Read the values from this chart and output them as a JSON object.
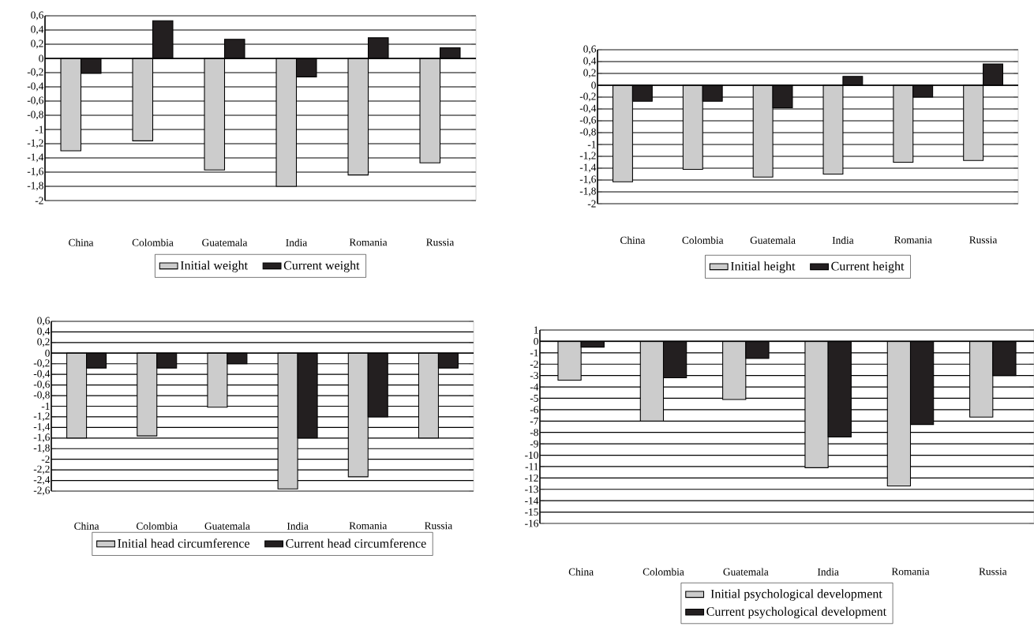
{
  "chart_data": [
    {
      "type": "bar",
      "categories": [
        "China",
        "Colombia",
        "Guatemala",
        "India",
        "Romania",
        "Russia"
      ],
      "series": [
        {
          "name": "Initial weight",
          "color": "#cccccc",
          "values": [
            -1.3,
            -1.16,
            -1.57,
            -1.8,
            -1.64,
            -1.47
          ]
        },
        {
          "name": "Current weight",
          "color": "#231f20",
          "values": [
            -0.21,
            0.53,
            0.27,
            -0.26,
            0.29,
            0.15
          ]
        }
      ],
      "ylim": [
        -2,
        0.6
      ],
      "yticks": [
        {
          "value": -2,
          "label": "-2"
        },
        {
          "value": -1.8,
          "label": "-1,8"
        },
        {
          "value": -1.6,
          "label": "-1,6"
        },
        {
          "value": -1.4,
          "label": "-1,4"
        },
        {
          "value": -1.2,
          "label": "-1,2"
        },
        {
          "value": -1,
          "label": "-1"
        },
        {
          "value": -0.8,
          "label": "-0,8"
        },
        {
          "value": -0.6,
          "label": "-0,6"
        },
        {
          "value": -0.4,
          "label": "-0,4"
        },
        {
          "value": -0.2,
          "label": "-0,2"
        },
        {
          "value": 0,
          "label": "0"
        },
        {
          "value": 0.2,
          "label": "0,2"
        },
        {
          "value": 0.4,
          "label": "0,4"
        },
        {
          "value": 0.6,
          "label": "0,6"
        }
      ],
      "grid": "y",
      "legend": "bottom"
    },
    {
      "type": "bar",
      "categories": [
        "China",
        "Colombia",
        "Guatemala",
        "India",
        "Romania",
        "Russia"
      ],
      "series": [
        {
          "name": "Initial height",
          "color": "#cccccc",
          "values": [
            -1.63,
            -1.42,
            -1.55,
            -1.5,
            -1.3,
            -1.27
          ]
        },
        {
          "name": "Current height",
          "color": "#231f20",
          "values": [
            -0.27,
            -0.27,
            -0.38,
            0.15,
            -0.2,
            0.36
          ]
        }
      ],
      "ylim": [
        -2,
        0.6
      ],
      "yticks": [
        {
          "value": -2,
          "label": "-2"
        },
        {
          "value": -1.8,
          "label": "-1,8"
        },
        {
          "value": -1.6,
          "label": "-1,6"
        },
        {
          "value": -1.4,
          "label": "-1,4"
        },
        {
          "value": -1.2,
          "label": "-1,2"
        },
        {
          "value": -1,
          "label": "-1"
        },
        {
          "value": -0.8,
          "label": "-0,8"
        },
        {
          "value": -0.6,
          "label": "-0,6"
        },
        {
          "value": -0.4,
          "label": "-0,4"
        },
        {
          "value": -0.2,
          "label": "-0,2"
        },
        {
          "value": 0,
          "label": "0"
        },
        {
          "value": 0.2,
          "label": "0,2"
        },
        {
          "value": 0.4,
          "label": "0,4"
        },
        {
          "value": 0.6,
          "label": "0,6"
        }
      ],
      "grid": "y",
      "legend": "bottom"
    },
    {
      "type": "bar",
      "categories": [
        "China",
        "Colombia",
        "Guatemala",
        "India",
        "Romania",
        "Russia"
      ],
      "series": [
        {
          "name": "Initial head circumference",
          "color": "#cccccc",
          "values": [
            -1.6,
            -1.56,
            -1.02,
            -2.56,
            -2.33,
            -1.6
          ]
        },
        {
          "name": "Current head circumference",
          "color": "#231f20",
          "values": [
            -0.28,
            -0.28,
            -0.2,
            -1.6,
            -1.2,
            -0.28
          ]
        }
      ],
      "ylim": [
        -2.6,
        0.6
      ],
      "yticks": [
        {
          "value": -2.6,
          "label": "-2,6"
        },
        {
          "value": -2.4,
          "label": "-2,4"
        },
        {
          "value": -2.2,
          "label": "-2,2"
        },
        {
          "value": -2,
          "label": "-2"
        },
        {
          "value": -1.8,
          "label": "-1,8"
        },
        {
          "value": -1.6,
          "label": "-1,6"
        },
        {
          "value": -1.4,
          "label": "-1,4"
        },
        {
          "value": -1.2,
          "label": "-1,2"
        },
        {
          "value": -1,
          "label": "-1"
        },
        {
          "value": -0.8,
          "label": "-0,8"
        },
        {
          "value": -0.6,
          "label": "-0,6"
        },
        {
          "value": -0.4,
          "label": "-0,4"
        },
        {
          "value": -0.2,
          "label": "-0,2"
        },
        {
          "value": 0,
          "label": "0"
        },
        {
          "value": 0.2,
          "label": "0,2"
        },
        {
          "value": 0.4,
          "label": "0,4"
        },
        {
          "value": 0.6,
          "label": "0,6"
        }
      ],
      "grid": "y",
      "legend": "bottom"
    },
    {
      "type": "bar",
      "categories": [
        "China",
        "Colombia",
        "Guatemala",
        "India",
        "Romania",
        "Russia"
      ],
      "series": [
        {
          "name": "Initial psychological development",
          "color": "#cccccc",
          "values": [
            -3.4,
            -7,
            -5.1,
            -11.1,
            -12.7,
            -6.65
          ]
        },
        {
          "name": "Current psychological development",
          "color": "#231f20",
          "values": [
            -0.5,
            -3.2,
            -1.5,
            -8.4,
            -7.3,
            -3
          ]
        }
      ],
      "ylim": [
        -16,
        1
      ],
      "yticks": [
        -16,
        -15,
        -14,
        -13,
        -12,
        -11,
        -10,
        -9,
        -8,
        -7,
        -6,
        -5,
        -4,
        -3,
        -2,
        -1,
        0,
        1
      ],
      "grid": "y",
      "legend": "bottom"
    }
  ]
}
